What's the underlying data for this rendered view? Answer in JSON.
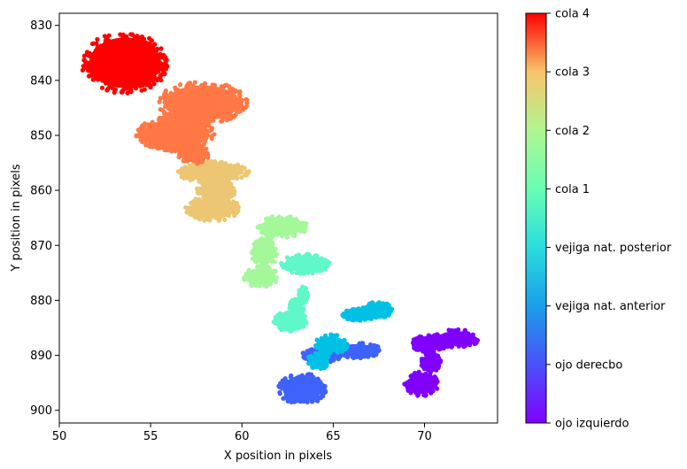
{
  "chart_data": {
    "type": "scatter",
    "title": "",
    "xlabel": "X position in pixels",
    "ylabel": "Y position in pixels",
    "xlim": [
      50,
      74
    ],
    "ylim": [
      902.3,
      827.8
    ],
    "y_inverted": true,
    "grid": false,
    "xticks": [
      50,
      55,
      60,
      65,
      70
    ],
    "yticks": [
      830,
      840,
      850,
      860,
      870,
      880,
      890,
      900
    ],
    "colorbar": {
      "labels": [
        "ojo izquierdo",
        "ojo derecbo",
        "vejiga nat. anterior",
        "vejiga nat. posterior",
        "cola 1",
        "cola 2",
        "cola 3",
        "cola 4"
      ],
      "colormap": "rainbow",
      "placement": "right"
    },
    "series": [
      {
        "name": "ojo izquierdo",
        "color": "#8000ff",
        "blobs": [
          {
            "x": [
              69.3,
              71.2
            ],
            "y": [
              886.2,
              889.5
            ]
          },
          {
            "x": [
              70.5,
              73.0
            ],
            "y": [
              885.3,
              888.6
            ]
          },
          {
            "x": [
              69.8,
              70.9
            ],
            "y": [
              889.5,
              893.0
            ]
          },
          {
            "x": [
              68.9,
              70.8
            ],
            "y": [
              893.0,
              897.4
            ]
          }
        ]
      },
      {
        "name": "ojo derecbo",
        "color": "#3f62fa",
        "blobs": [
          {
            "x": [
              65.0,
              67.6
            ],
            "y": [
              887.7,
              890.5
            ]
          },
          {
            "x": [
              63.3,
              65.5
            ],
            "y": [
              888.6,
              891.3
            ]
          },
          {
            "x": [
              62.0,
              64.6
            ],
            "y": [
              893.2,
              899.0
            ]
          }
        ]
      },
      {
        "name": "vejiga nat. anterior",
        "color": "#00c0e6",
        "blobs": [
          {
            "x": [
              65.5,
              67.4
            ],
            "y": [
              881.5,
              883.8
            ]
          },
          {
            "x": [
              66.6,
              68.3
            ],
            "y": [
              880.3,
              883.2
            ]
          },
          {
            "x": [
              64.0,
              65.8
            ],
            "y": [
              886.2,
              889.8
            ]
          },
          {
            "x": [
              63.6,
              64.8
            ],
            "y": [
              889.4,
              892.5
            ]
          }
        ]
      },
      {
        "name": "vejiga nat. posterior",
        "color": "#60f8c8",
        "blobs": [
          {
            "x": [
              62.1,
              64.8
            ],
            "y": [
              871.6,
              875.2
            ]
          },
          {
            "x": [
              63.1,
              63.6
            ],
            "y": [
              877.5,
              880.5
            ]
          },
          {
            "x": [
              62.6,
              63.4
            ],
            "y": [
              879.6,
              882.8
            ]
          },
          {
            "x": [
              61.7,
              63.6
            ],
            "y": [
              882.0,
              885.6
            ]
          }
        ]
      },
      {
        "name": "cola 1",
        "color": "#a4f89a",
        "blobs": [
          {
            "x": [
              60.8,
              63.6
            ],
            "y": [
              864.6,
              868.6
            ]
          },
          {
            "x": [
              60.5,
              62.0
            ],
            "y": [
              868.5,
              874.0
            ]
          },
          {
            "x": [
              60.0,
              62.0
            ],
            "y": [
              873.8,
              877.6
            ]
          }
        ]
      },
      {
        "name": "cola 2",
        "color": "#ecc672",
        "blobs": [
          {
            "x": [
              56.4,
              60.4
            ],
            "y": [
              854.6,
              858.6
            ]
          },
          {
            "x": [
              57.5,
              59.7
            ],
            "y": [
              858.2,
              862.2
            ]
          },
          {
            "x": [
              56.9,
              59.9
            ],
            "y": [
              861.0,
              865.6
            ]
          }
        ]
      },
      {
        "name": "cola 3",
        "color": "#ff7845",
        "blobs": [
          {
            "x": [
              55.4,
              60.3
            ],
            "y": [
              840.2,
              848.0
            ]
          },
          {
            "x": [
              54.2,
              58.5
            ],
            "y": [
              846.5,
              853.0
            ]
          },
          {
            "x": [
              56.5,
              58.2
            ],
            "y": [
              851.5,
              855.2
            ]
          }
        ]
      },
      {
        "name": "cola 4",
        "color": "#ff0000",
        "blobs": [
          {
            "x": [
              51.2,
              56.0
            ],
            "y": [
              831.2,
              842.4
            ]
          }
        ]
      }
    ]
  }
}
